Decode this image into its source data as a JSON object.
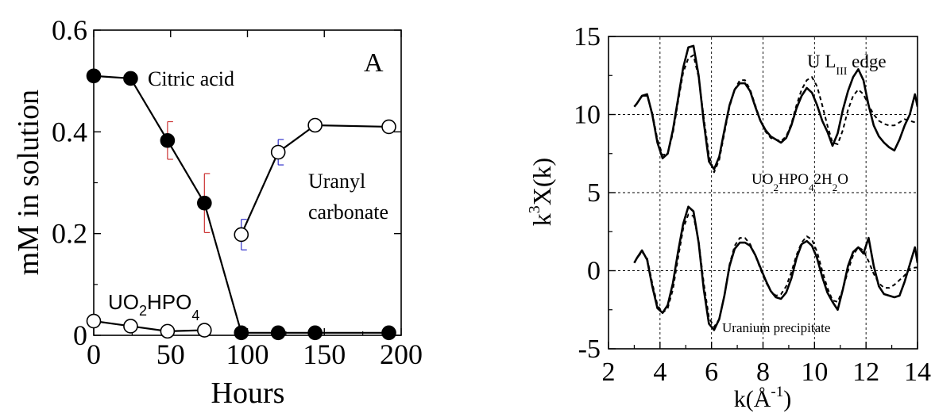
{
  "chart_data": [
    {
      "type": "scatter",
      "panel_label": "A",
      "xlabel": "Hours",
      "ylabel": "mM in solution",
      "xlim": [
        0,
        200
      ],
      "ylim": [
        0,
        0.6
      ],
      "x_ticks": [
        "0",
        "50",
        "100",
        "150",
        "200"
      ],
      "y_ticks": [
        "0",
        "0.2",
        "0.4",
        "0.6"
      ],
      "grid": false,
      "series": [
        {
          "name": "Citric acid",
          "marker": "filled-circle",
          "color": "#000000",
          "errorbar_color": "#cc3333",
          "x": [
            0,
            24,
            48,
            72,
            96,
            120,
            144,
            192
          ],
          "y": [
            0.51,
            0.505,
            0.383,
            0.26,
            0.005,
            0.005,
            0.005,
            0.005
          ],
          "error": [
            0,
            0,
            0.037,
            0.058,
            0,
            0,
            0,
            0
          ]
        },
        {
          "name": "Uranyl carbonate",
          "label_lines": [
            "Uranyl",
            "carbonate"
          ],
          "marker": "open-circle",
          "color": "#000000",
          "errorbar_color": "#3333cc",
          "x": [
            96,
            120,
            144,
            192
          ],
          "y": [
            0.198,
            0.36,
            0.413,
            0.41
          ],
          "error": [
            0.03,
            0.025,
            0,
            0
          ]
        },
        {
          "name": "UO2HPO4",
          "label": {
            "base": "UO",
            "sub1": "2",
            "mid": "HPO",
            "sub2": "4"
          },
          "marker": "open-circle",
          "color": "#000000",
          "x": [
            0,
            24,
            48,
            72
          ],
          "y": [
            0.028,
            0.018,
            0.008,
            0.01
          ],
          "error": [
            0,
            0,
            0,
            0
          ]
        }
      ]
    },
    {
      "type": "line",
      "xlabel": "k(Å^-1)",
      "xlabel_parts": {
        "main": "k(Å",
        "sup": "-1",
        "end": ")"
      },
      "ylabel": "k^3X(k)",
      "ylabel_parts": {
        "base": "k",
        "sup": "3",
        "rest": "X(k)"
      },
      "xlim": [
        2,
        14
      ],
      "ylim": [
        -5,
        15
      ],
      "x_ticks": [
        "2",
        "4",
        "6",
        "8",
        "10",
        "12",
        "14"
      ],
      "y_ticks": [
        "-5",
        "0",
        "5",
        "10",
        "15"
      ],
      "grid": "dotted at k = 4, 6, 8, 10, 12 and y = 0, 5, 10",
      "annotations": [
        {
          "id": "edge",
          "parts": [
            "U L",
            "III",
            " edge"
          ]
        },
        {
          "id": "reference",
          "parts": [
            "UO",
            "2",
            "HPO",
            "4",
            "2H",
            "2",
            "O"
          ]
        },
        {
          "id": "precipitate",
          "text": "Uranium precipitate"
        }
      ],
      "x": [
        3.0,
        3.1,
        3.3,
        3.5,
        3.7,
        3.9,
        4.1,
        4.3,
        4.5,
        4.7,
        4.9,
        5.1,
        5.3,
        5.5,
        5.7,
        5.9,
        6.1,
        6.3,
        6.5,
        6.7,
        6.9,
        7.1,
        7.3,
        7.5,
        7.7,
        7.9,
        8.1,
        8.3,
        8.5,
        8.7,
        8.9,
        9.1,
        9.3,
        9.5,
        9.7,
        9.9,
        10.1,
        10.3,
        10.5,
        10.7,
        10.9,
        11.1,
        11.3,
        11.5,
        11.7,
        11.9,
        12.1,
        12.3,
        12.5,
        12.7,
        12.9,
        13.1,
        13.3,
        13.5,
        13.7,
        13.9,
        14.0
      ],
      "series": [
        {
          "name": "UO2HPO4·2H2O data",
          "style": "solid",
          "y": [
            10.5,
            10.7,
            11.2,
            11.3,
            10.0,
            8.2,
            7.2,
            7.5,
            9.0,
            11.0,
            13.0,
            14.3,
            14.4,
            12.5,
            9.5,
            7.0,
            6.5,
            7.3,
            9.0,
            10.6,
            11.6,
            12.0,
            12.0,
            11.5,
            10.5,
            9.6,
            9.0,
            8.6,
            8.4,
            8.2,
            8.5,
            9.3,
            10.4,
            11.2,
            11.7,
            11.4,
            10.6,
            9.6,
            8.9,
            8.0,
            8.8,
            10.3,
            11.5,
            12.4,
            12.9,
            12.2,
            10.6,
            9.3,
            8.6,
            8.2,
            7.9,
            7.7,
            8.4,
            9.3,
            10.0,
            11.3,
            10.5
          ]
        },
        {
          "name": "UO2HPO4·2H2O fit",
          "style": "dashed",
          "y": [
            10.5,
            10.7,
            11.2,
            11.2,
            10.1,
            8.4,
            7.4,
            7.5,
            8.8,
            10.8,
            12.7,
            13.6,
            13.8,
            12.4,
            9.8,
            7.4,
            6.3,
            7.1,
            8.8,
            10.5,
            11.6,
            12.2,
            12.2,
            11.6,
            10.6,
            9.6,
            8.9,
            8.5,
            8.4,
            8.3,
            8.6,
            9.4,
            10.6,
            11.6,
            12.2,
            12.4,
            11.8,
            10.6,
            9.3,
            8.2,
            8.1,
            9.0,
            10.3,
            11.2,
            11.6,
            11.3,
            10.6,
            10.0,
            9.6,
            9.4,
            9.3,
            9.3,
            9.5,
            9.7,
            9.6,
            9.5,
            9.5
          ]
        },
        {
          "name": "Uranium precipitate data",
          "style": "solid",
          "y": [
            0.5,
            0.8,
            1.3,
            0.7,
            -1.0,
            -2.4,
            -2.7,
            -2.2,
            -0.8,
            1.2,
            3.0,
            4.1,
            3.8,
            1.8,
            -1.2,
            -3.4,
            -3.8,
            -3.1,
            -1.6,
            0.3,
            1.4,
            1.8,
            1.8,
            1.6,
            1.0,
            0.2,
            -0.6,
            -1.3,
            -1.7,
            -1.8,
            -1.4,
            -0.5,
            0.8,
            1.7,
            1.9,
            1.6,
            0.8,
            -0.4,
            -1.4,
            -2.0,
            -2.5,
            -1.2,
            0.3,
            1.2,
            1.5,
            1.1,
            2.1,
            0.3,
            -1.0,
            -1.5,
            -1.6,
            -1.7,
            -1.6,
            -0.7,
            0.4,
            1.5,
            0.5
          ]
        },
        {
          "name": "Uranium precipitate fit",
          "style": "dashed",
          "y": [
            0.5,
            0.8,
            1.2,
            0.8,
            -0.8,
            -2.2,
            -2.7,
            -2.4,
            -1.2,
            0.8,
            2.7,
            3.6,
            3.5,
            1.9,
            -0.8,
            -3.0,
            -3.6,
            -3.1,
            -1.6,
            0.4,
            1.6,
            2.1,
            2.1,
            1.7,
            1.0,
            0.1,
            -0.7,
            -1.3,
            -1.6,
            -1.5,
            -1.0,
            -0.1,
            1.0,
            1.8,
            2.2,
            2.0,
            1.2,
            0.0,
            -1.1,
            -1.9,
            -2.0,
            -1.2,
            0.0,
            1.0,
            1.5,
            1.3,
            0.6,
            -0.2,
            -0.8,
            -1.1,
            -1.1,
            -0.9,
            -0.6,
            -0.3,
            0.1,
            0.2,
            0.2
          ]
        }
      ]
    }
  ]
}
